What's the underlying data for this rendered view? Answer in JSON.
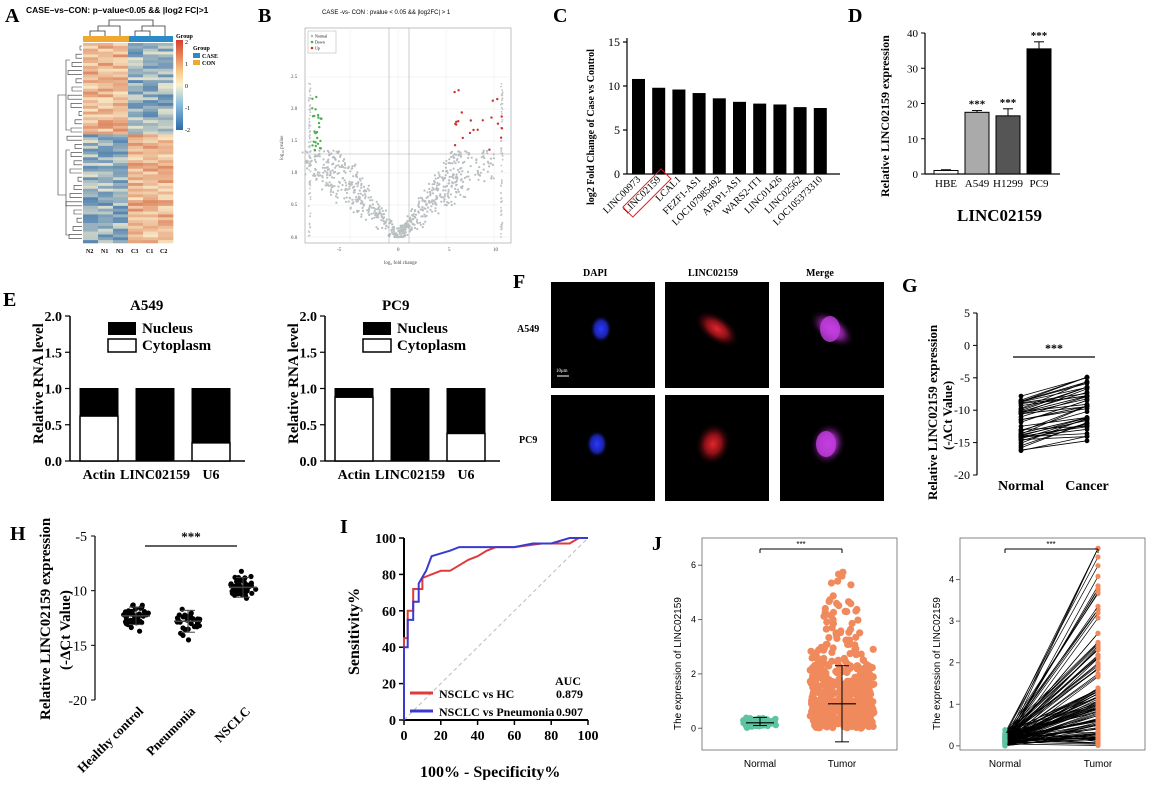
{
  "panels": {
    "A": {
      "letter": "A",
      "title": "CASE–vs–CON: p–value<0.05 && |log2 FC|>1",
      "legend_title": "Group",
      "legend": [
        "CASE",
        "CON"
      ],
      "scale_ticks": [
        "2",
        "1",
        "0",
        "-1",
        "-2"
      ],
      "samples": [
        "N2",
        "N1",
        "N3",
        "C3",
        "C1",
        "C2"
      ]
    },
    "B": {
      "letter": "B",
      "title": "CASE -vs- CON : pvalue < 0.05 && |log2FC| > 1",
      "xlabel": "log₂ fold change",
      "ylabel": "log₁₀ pvalue",
      "legend": [
        "Normal",
        "Down",
        "Up"
      ],
      "xticks": [
        "-5",
        "0",
        "5",
        "10"
      ],
      "yticks": [
        "0.0",
        "0.5",
        "1.0",
        "1.5",
        "2.0",
        "2.5"
      ]
    },
    "C": {
      "letter": "C",
      "ylabel": "log2 Fold Change of Case vs Control",
      "yticks": [
        "0",
        "5",
        "10",
        "15"
      ]
    },
    "D": {
      "letter": "D",
      "ylabel": "Relative LINC02159 expression",
      "xlabel": "LINC02159",
      "yticks": [
        "0",
        "10",
        "20",
        "30",
        "40"
      ],
      "stars": "***"
    },
    "E": {
      "letter": "E",
      "titles": [
        "A549",
        "PC9"
      ],
      "ylabel": "Relative RNA level",
      "legend": [
        "Nucleus",
        "Cytoplasm"
      ],
      "categories": [
        "Actin",
        "LINC02159",
        "U6"
      ],
      "yticks": [
        "0.0",
        "0.5",
        "1.0",
        "1.5",
        "2.0"
      ]
    },
    "F": {
      "letter": "F",
      "columns": [
        "DAPI",
        "LINC02159",
        "Merge"
      ],
      "rows": [
        "A549",
        "PC9"
      ],
      "scalebar": "10μm"
    },
    "G": {
      "letter": "G",
      "ylabel1": "Relative LINC02159 expression",
      "ylabel2": "(-ΔCt Value)",
      "categories": [
        "Normal",
        "Cancer"
      ],
      "yticks": [
        "5",
        "0",
        "-5",
        "-10",
        "-15",
        "-20"
      ],
      "stars": "***"
    },
    "H": {
      "letter": "H",
      "ylabel1": "Relative LINC02159 expression",
      "ylabel2": "(-ΔCt Value)",
      "categories": [
        "Healthy control",
        "Pneumonia",
        "NSCLC"
      ],
      "yticks": [
        "-5",
        "-10",
        "-15",
        "-20"
      ],
      "stars": "***"
    },
    "I": {
      "letter": "I",
      "xlabel": "100% - Specificity%",
      "ylabel": "Sensitivity%",
      "ticks": [
        "0",
        "20",
        "40",
        "60",
        "80",
        "100"
      ],
      "auc_header": "AUC",
      "legend": [
        "NSCLC vs HC",
        "NSCLC vs Pneumonia"
      ],
      "auc": [
        "0.879",
        "0.907"
      ],
      "colors": [
        "#e03a3a",
        "#3a3ad0"
      ]
    },
    "J": {
      "letter": "J",
      "ylabel": "The expression of LINC02159",
      "categories": [
        "Normal",
        "Tumor"
      ],
      "yticks1": [
        "0",
        "2",
        "4",
        "6"
      ],
      "yticks2": [
        "0",
        "1",
        "2",
        "3",
        "4"
      ],
      "stars": "***",
      "colors": [
        "#5ec4a0",
        "#f08a5d"
      ]
    }
  },
  "chart_data": [
    {
      "id": "C",
      "type": "bar",
      "categories": [
        "LINC00973",
        "LINC02159",
        "LCAL1",
        "FEZF1-AS1",
        "LOC107985492",
        "AFAP1-AS1",
        "WARS2-IT1",
        "LINC01426",
        "LINC02562",
        "LOC105373310"
      ],
      "values": [
        10.8,
        9.8,
        9.6,
        9.2,
        8.6,
        8.2,
        8.0,
        7.9,
        7.6,
        7.5
      ],
      "ylim": [
        0,
        15
      ],
      "highlight": "LINC02159"
    },
    {
      "id": "D",
      "type": "bar",
      "categories": [
        "HBE",
        "A549",
        "H1299",
        "PC9"
      ],
      "values": [
        1.0,
        17.5,
        16.5,
        35.5
      ],
      "errors": [
        0.2,
        0.5,
        2.0,
        2.0
      ],
      "ylim": [
        0,
        40
      ],
      "colors": [
        "#ffffff",
        "#aaaaaa",
        "#555555",
        "#000000"
      ]
    },
    {
      "id": "E1",
      "type": "bar",
      "title": "A549",
      "categories": [
        "Actin",
        "LINC02159",
        "U6"
      ],
      "series": [
        {
          "name": "Cytoplasm",
          "values": [
            0.62,
            0.0,
            0.25
          ]
        },
        {
          "name": "Nucleus",
          "values": [
            0.38,
            1.0,
            0.75
          ]
        }
      ],
      "ylim": [
        0,
        2
      ]
    },
    {
      "id": "E2",
      "type": "bar",
      "title": "PC9",
      "categories": [
        "Actin",
        "LINC02159",
        "U6"
      ],
      "series": [
        {
          "name": "Cytoplasm",
          "values": [
            0.88,
            0.0,
            0.38
          ]
        },
        {
          "name": "Nucleus",
          "values": [
            0.12,
            1.0,
            0.62
          ]
        }
      ],
      "ylim": [
        0,
        2
      ]
    },
    {
      "id": "G",
      "type": "line",
      "categories": [
        "Normal",
        "Cancer"
      ],
      "normal_range": [
        -16.5,
        -7.5
      ],
      "cancer_range": [
        -15.2,
        -4.8
      ],
      "ylim": [
        -20,
        5
      ]
    },
    {
      "id": "H",
      "type": "scatter",
      "categories": [
        "Healthy control",
        "Pneumonia",
        "NSCLC"
      ],
      "means": [
        -12.3,
        -12.8,
        -9.7
      ],
      "sd": [
        0.8,
        1.0,
        0.9
      ],
      "ylim": [
        -20,
        -5
      ]
    },
    {
      "id": "I",
      "type": "line",
      "series": [
        {
          "name": "NSCLC vs HC",
          "x": [
            0,
            0,
            2,
            2,
            5,
            5,
            10,
            10,
            20,
            25,
            30,
            35,
            40,
            45,
            50,
            60,
            75,
            90,
            95,
            100
          ],
          "y": [
            0,
            45,
            45,
            60,
            60,
            72,
            72,
            78,
            82,
            82,
            85,
            88,
            90,
            93,
            95,
            95,
            97,
            97,
            100,
            100
          ]
        },
        {
          "name": "NSCLC vs Pneumonia",
          "x": [
            0,
            0,
            2,
            2,
            5,
            5,
            8,
            8,
            12,
            15,
            25,
            30,
            40,
            60,
            70,
            80,
            90,
            100
          ],
          "y": [
            0,
            40,
            40,
            55,
            55,
            65,
            65,
            75,
            82,
            90,
            93,
            95,
            95,
            95,
            97,
            97,
            100,
            100
          ]
        }
      ],
      "xlim": [
        0,
        100
      ],
      "ylim": [
        0,
        100
      ]
    },
    {
      "id": "J1",
      "type": "scatter",
      "categories": [
        "Normal",
        "Tumor"
      ],
      "medians": [
        0.2,
        0.9
      ],
      "whiskers": [
        [
          0.1,
          0.4
        ],
        [
          -0.5,
          2.3
        ]
      ],
      "ylim": [
        -0.8,
        7
      ]
    },
    {
      "id": "J2",
      "type": "line",
      "categories": [
        "Normal",
        "Tumor"
      ],
      "ylim": [
        0,
        5
      ]
    }
  ]
}
